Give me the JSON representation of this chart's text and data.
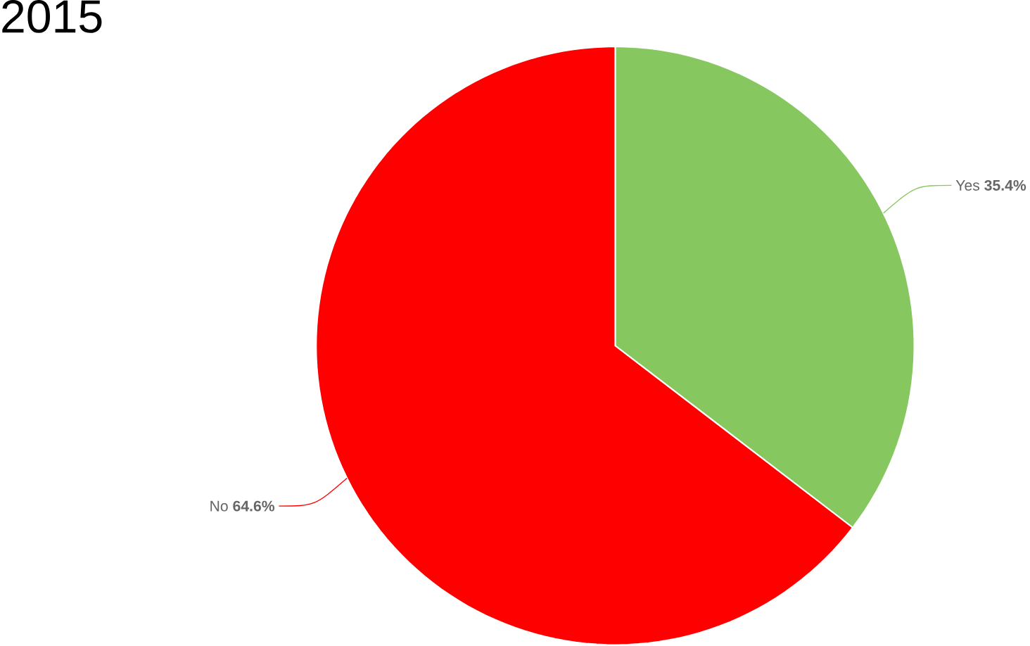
{
  "chart_data": {
    "type": "pie",
    "title": "2015",
    "categories": [
      "Yes",
      "No"
    ],
    "values": [
      35.4,
      64.6
    ],
    "colors": [
      "#87c75f",
      "#ff0000"
    ],
    "value_labels": [
      "35.4%",
      "64.6%"
    ]
  }
}
